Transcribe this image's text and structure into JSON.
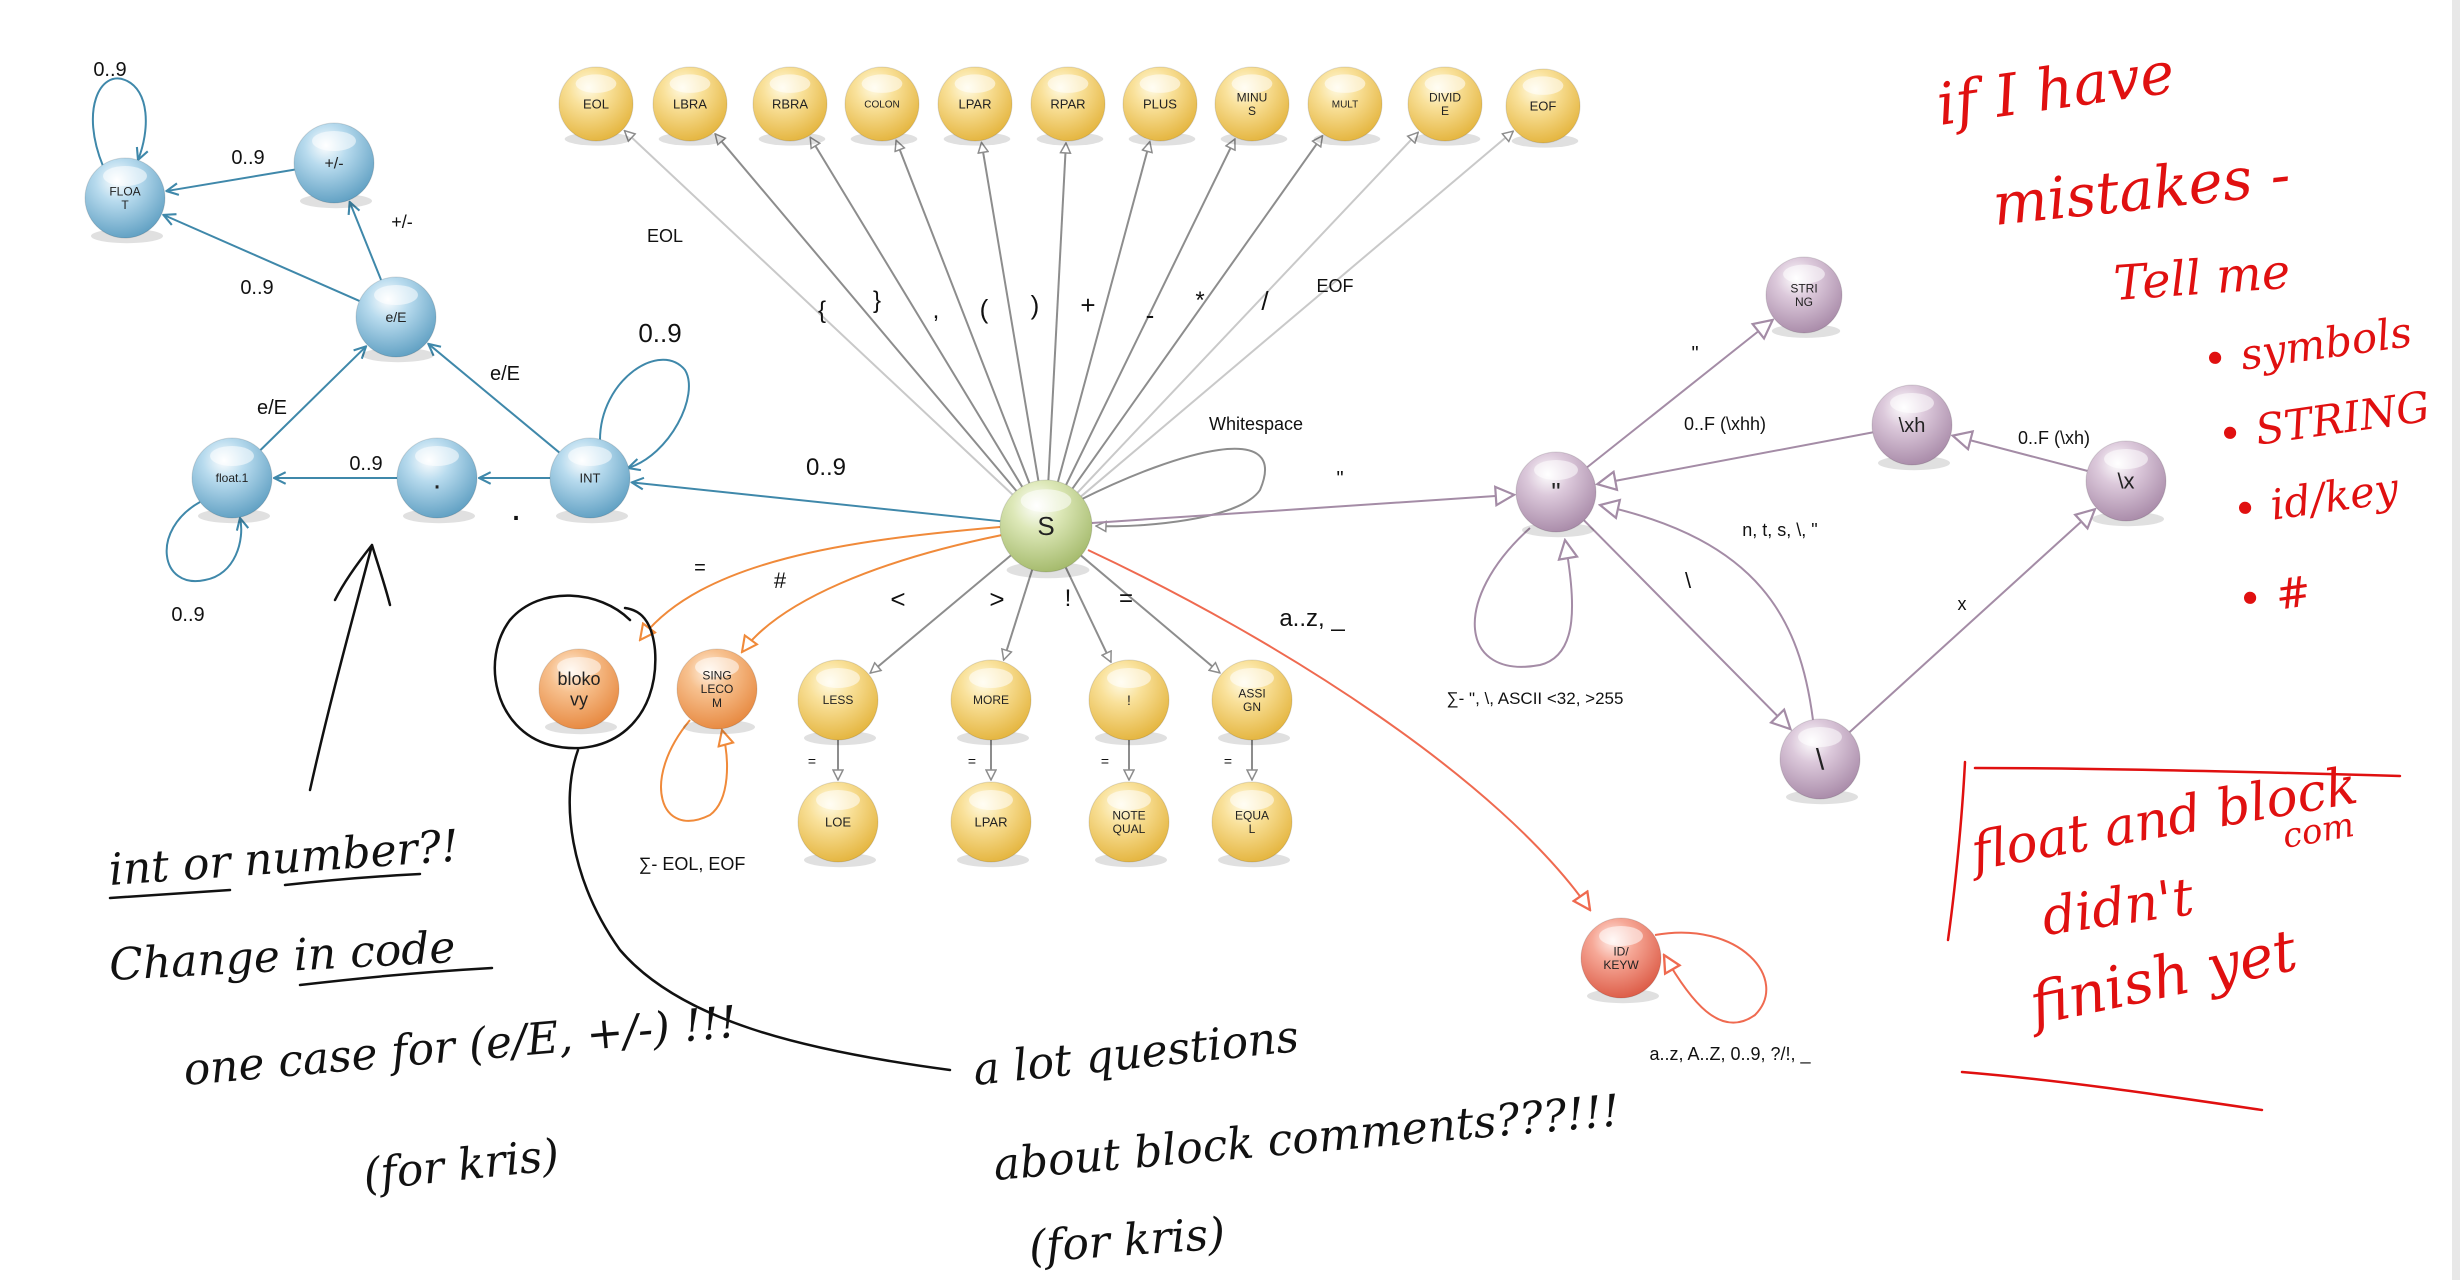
{
  "colors": {
    "blue": "#7fb6d4",
    "yellow": "#f2cd63",
    "purple": "#c3a8c2",
    "orange": "#f0a464",
    "green": "#c3d68e",
    "red": "#ef7a66",
    "edge_gray": "#8d8d8d",
    "edge_blue": "#3f88aa",
    "edge_purple": "#a48ca6",
    "edge_orange": "#f08a3a",
    "ink_red": "#e01010",
    "ink_black": "#111111"
  },
  "nodes": {
    "eol": "EOL",
    "lbra": "LBRA",
    "rbra": "RBRA",
    "colon": "COLON",
    "lpar": "LPAR",
    "rpar": "RPAR",
    "plus": "PLUS",
    "minus": "MINU\nS",
    "mult": "MULT",
    "divide": "DIVID\nE",
    "eof": "EOF",
    "float": "FLOA\nT",
    "plusminus": "+/-",
    "exp": "e/E",
    "float1": "float.1",
    "dot": ".",
    "int": "INT",
    "start": "S",
    "string": "STRI\nNG",
    "quote": "\"",
    "hex": "\\xh",
    "hexx": "\\x",
    "backslash": "\\",
    "blokovy": "bloko\nvy",
    "singlecom": "SING\nLECO\nM",
    "less": "LESS",
    "more": "MORE",
    "excl": "!",
    "assign": "ASSI\nGN",
    "loe": "LOE",
    "moe": "LPAR",
    "notequal": "NOTE\nQUAL",
    "equal": "EQUA\nL",
    "idkey": "ID/\nKEYW"
  },
  "edge_labels": {
    "float_loop": "0..9",
    "pm_to_float": "0..9",
    "exp_to_pm": "+/-",
    "exp_to_float": "0..9",
    "float1_to_exp": "e/E",
    "int_to_exp": "e/E",
    "int_loop": "0..9",
    "dot_to_float1": "0..9",
    "float1_loop": "0..9",
    "int_to_dot": ".",
    "s_to_int": "0..9",
    "to_eol": "EOL",
    "to_lbra": "{",
    "to_rbra": "}",
    "to_colon": ",",
    "to_lpar": "(",
    "to_rpar": ")",
    "to_plus": "+",
    "to_minus": "-",
    "to_mult": "*",
    "to_divide": "/",
    "to_eof": "EOF",
    "whitespace": "Whitespace",
    "to_quote": "\"",
    "to_string": "\"",
    "quote_hex": "0..F (\\xhh)",
    "hexx_hex": "0..F (\\xh)",
    "bs_loop": "n, t, s, \\, \"",
    "quote_bs": "\\",
    "bs_hexx": "x",
    "quote_loop": "∑- \", \\, ASCII <32, >255",
    "to_blok": "=",
    "to_single": "#",
    "single_loop": "∑- EOL, EOF",
    "to_less": "<",
    "to_more": ">",
    "to_excl": "!",
    "to_assign": "=",
    "less_loe": "=",
    "more_moe": "=",
    "excl_ne": "=",
    "assign_eq": "=",
    "to_id": "a..z, _",
    "id_loop": "a..z, A..Z, 0..9, ?/!, _"
  },
  "notes": {
    "red1": [
      "if I have",
      "mistakes -",
      "Tell me"
    ],
    "red_list": [
      "• symbols",
      "• STRING",
      "• id/key",
      "• #"
    ],
    "red2": [
      "float and block",
      "didn't",
      "finish yet"
    ],
    "red2_sup": "com",
    "black1": [
      "int or number?!",
      "Change in code",
      "one case for (e/E, +/-) !!!",
      "(for kris)"
    ],
    "black2": [
      "a lot questions",
      "about block comments???!!!",
      "(for kris)"
    ]
  }
}
